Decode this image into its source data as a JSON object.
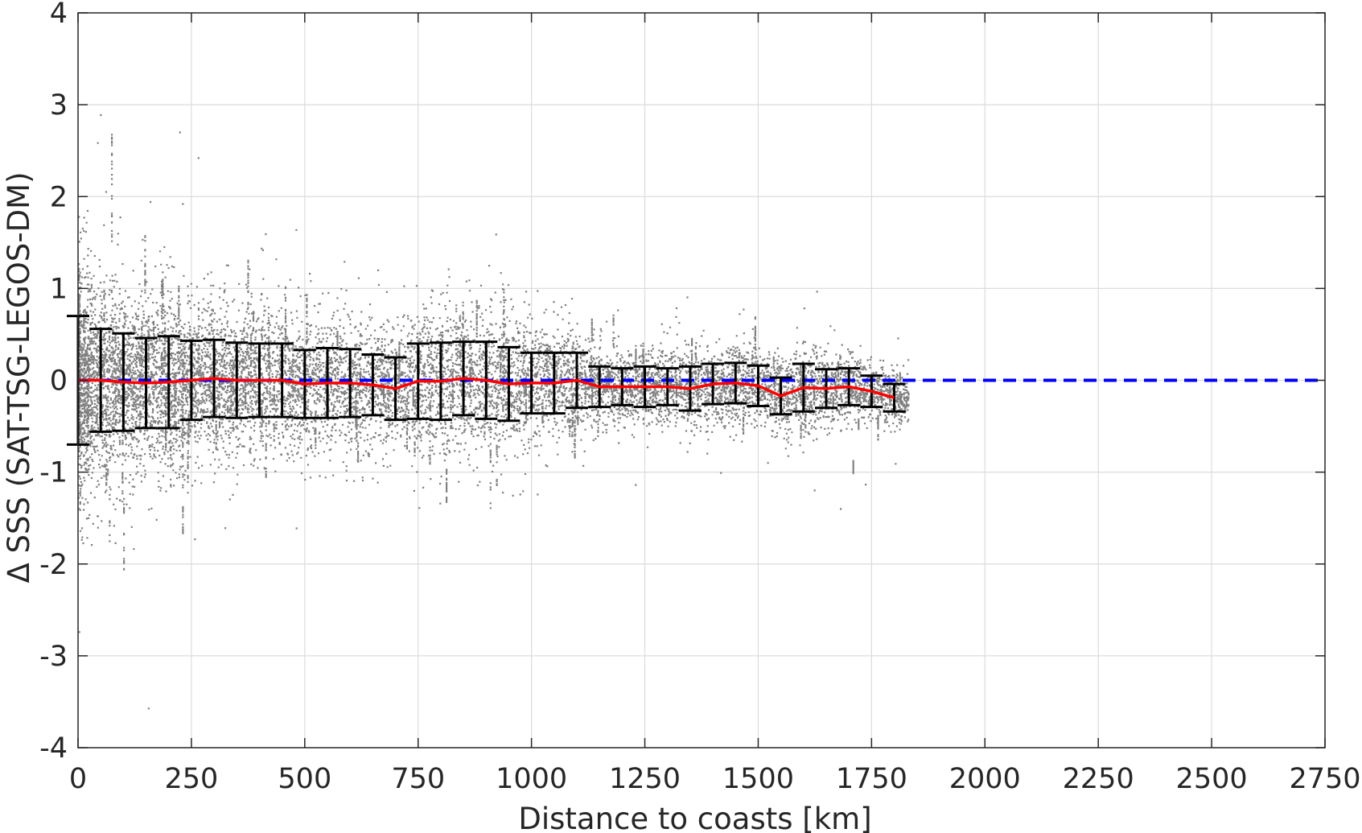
{
  "chart_data": {
    "type": "scatter",
    "xlabel": "Distance to coasts [km]",
    "ylabel": "Δ SSS (SAT-TSG-LEGOS-DM)",
    "xlim": [
      0,
      2750
    ],
    "ylim": [
      -4,
      4
    ],
    "xticks": [
      "0",
      "250",
      "500",
      "750",
      "1000",
      "1250",
      "1500",
      "1750",
      "2000",
      "2250",
      "2500",
      "2750"
    ],
    "yticks": [
      "-4",
      "-3",
      "-2",
      "-1",
      "0",
      "1",
      "2",
      "3",
      "4"
    ],
    "grid": true,
    "colors": {
      "scatter": "#808080",
      "mean_line": "#ff0000",
      "reference_line": "#0000ff",
      "error_bars": "#000000"
    },
    "reference_line": {
      "y": 0,
      "style": "dashed"
    },
    "bins": [
      {
        "x": 0,
        "mean": 0.0,
        "std": 0.7
      },
      {
        "x": 50,
        "mean": 0.0,
        "std": 0.56
      },
      {
        "x": 100,
        "mean": -0.02,
        "std": 0.53
      },
      {
        "x": 150,
        "mean": -0.03,
        "std": 0.49
      },
      {
        "x": 200,
        "mean": -0.02,
        "std": 0.5
      },
      {
        "x": 250,
        "mean": 0.0,
        "std": 0.43
      },
      {
        "x": 300,
        "mean": 0.02,
        "std": 0.42
      },
      {
        "x": 350,
        "mean": 0.0,
        "std": 0.41
      },
      {
        "x": 400,
        "mean": 0.0,
        "std": 0.4
      },
      {
        "x": 450,
        "mean": 0.0,
        "std": 0.4
      },
      {
        "x": 500,
        "mean": -0.04,
        "std": 0.37
      },
      {
        "x": 550,
        "mean": -0.03,
        "std": 0.38
      },
      {
        "x": 600,
        "mean": -0.03,
        "std": 0.37
      },
      {
        "x": 650,
        "mean": -0.05,
        "std": 0.33
      },
      {
        "x": 700,
        "mean": -0.09,
        "std": 0.34
      },
      {
        "x": 750,
        "mean": -0.01,
        "std": 0.41
      },
      {
        "x": 800,
        "mean": -0.01,
        "std": 0.42
      },
      {
        "x": 850,
        "mean": 0.02,
        "std": 0.4
      },
      {
        "x": 900,
        "mean": 0.0,
        "std": 0.42
      },
      {
        "x": 950,
        "mean": -0.04,
        "std": 0.4
      },
      {
        "x": 1000,
        "mean": -0.03,
        "std": 0.33
      },
      {
        "x": 1050,
        "mean": -0.03,
        "std": 0.33
      },
      {
        "x": 1100,
        "mean": 0.0,
        "std": 0.3
      },
      {
        "x": 1150,
        "mean": -0.07,
        "std": 0.22
      },
      {
        "x": 1200,
        "mean": -0.07,
        "std": 0.2
      },
      {
        "x": 1250,
        "mean": -0.07,
        "std": 0.22
      },
      {
        "x": 1300,
        "mean": -0.07,
        "std": 0.2
      },
      {
        "x": 1350,
        "mean": -0.09,
        "std": 0.24
      },
      {
        "x": 1400,
        "mean": -0.04,
        "std": 0.22
      },
      {
        "x": 1450,
        "mean": -0.03,
        "std": 0.22
      },
      {
        "x": 1500,
        "mean": -0.06,
        "std": 0.22
      },
      {
        "x": 1550,
        "mean": -0.17,
        "std": 0.2
      },
      {
        "x": 1600,
        "mean": -0.08,
        "std": 0.26
      },
      {
        "x": 1650,
        "mean": -0.09,
        "std": 0.21
      },
      {
        "x": 1700,
        "mean": -0.07,
        "std": 0.2
      },
      {
        "x": 1750,
        "mean": -0.12,
        "std": 0.17
      },
      {
        "x": 1800,
        "mean": -0.19,
        "std": 0.15
      }
    ]
  }
}
